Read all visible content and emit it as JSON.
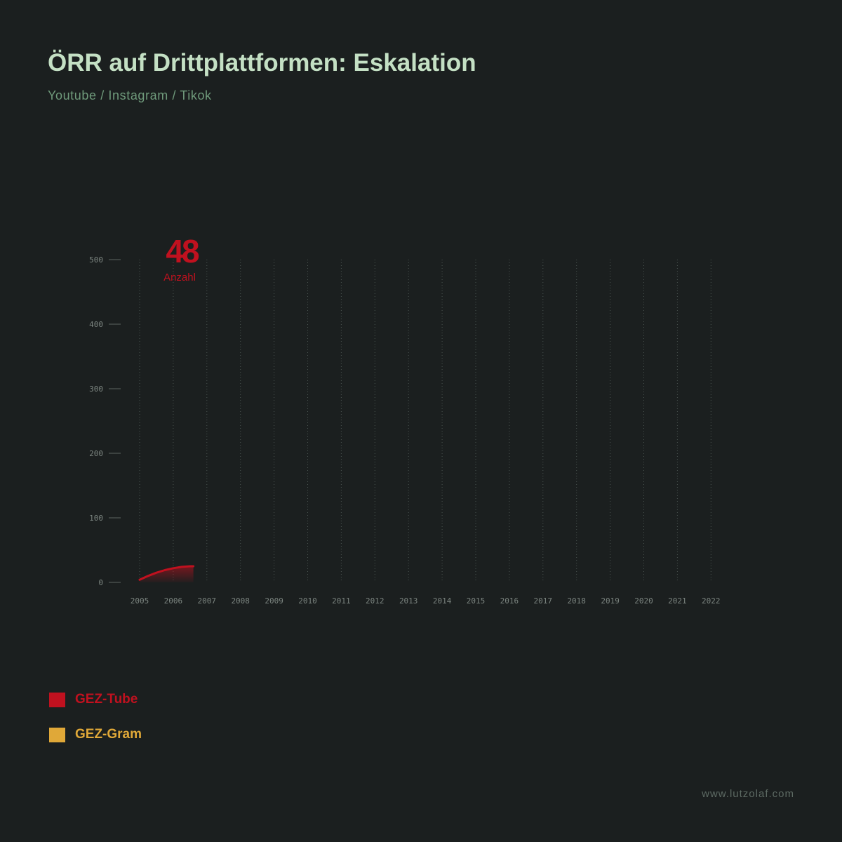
{
  "title": "ÖRR auf Drittplattformen: Eskalation",
  "subtitle": "Youtube / Instagram / Tikok",
  "footer": "www.lutzolaf.com",
  "colors": {
    "background": "#1b1f1f",
    "title": "#c4e0c4",
    "subtitle": "#6f9a7b",
    "gez_tube": "#c0111f",
    "gez_gram": "#e0a838",
    "grid": "#4a5450"
  },
  "legend": [
    {
      "label": "GEZ-Tube",
      "color": "#c0111f"
    },
    {
      "label": "GEZ-Gram",
      "color": "#e0a838"
    }
  ],
  "counter": {
    "value": "48",
    "unit": "Anzahl",
    "color": "#c0111f"
  },
  "chart_data": {
    "type": "area",
    "x": [
      "2005",
      "2006",
      "2007",
      "2008",
      "2009",
      "2010",
      "2011",
      "2012",
      "2013",
      "2014",
      "2015",
      "2016",
      "2017",
      "2018",
      "2019",
      "2020",
      "2021",
      "2022"
    ],
    "y_ticks": [
      0,
      100,
      200,
      300,
      400,
      500
    ],
    "ylim": [
      0,
      500
    ],
    "grid": "vertical dotted",
    "series": [
      {
        "name": "GEZ-Tube",
        "color": "#c0111f",
        "points": [
          {
            "x": 2005.0,
            "y": 4
          },
          {
            "x": 2005.25,
            "y": 10
          },
          {
            "x": 2005.5,
            "y": 15
          },
          {
            "x": 2005.75,
            "y": 19
          },
          {
            "x": 2006.0,
            "y": 22
          },
          {
            "x": 2006.25,
            "y": 24
          },
          {
            "x": 2006.5,
            "y": 25
          },
          {
            "x": 2006.6,
            "y": 25
          }
        ]
      },
      {
        "name": "GEZ-Gram",
        "color": "#e0a838",
        "points": []
      }
    ]
  }
}
